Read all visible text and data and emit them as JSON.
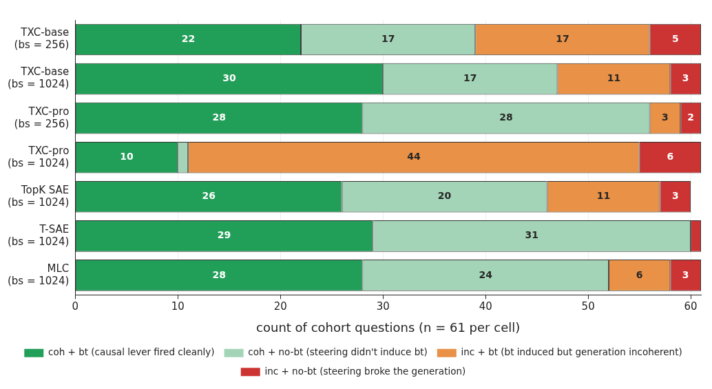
{
  "chart_data": {
    "type": "bar",
    "orientation": "horizontal",
    "stacked": true,
    "xlabel": "count of cohort questions (n = 61 per cell)",
    "categories": [
      "TXC-base\n(bs = 256)",
      "TXC-base\n(bs = 1024)",
      "TXC-pro\n(bs = 256)",
      "TXC-pro\n(bs = 1024)",
      "TopK SAE\n(bs = 1024)",
      "T-SAE\n(bs = 1024)",
      "MLC\n(bs = 1024)"
    ],
    "series": [
      {
        "name": "coh + bt (causal lever fired cleanly)",
        "color": "#219e58",
        "values": [
          22,
          30,
          28,
          10,
          26,
          29,
          28
        ],
        "value_labels": [
          "22",
          "30",
          "28",
          "10",
          "26",
          "29",
          "28"
        ]
      },
      {
        "name": "coh + no-bt (steering didn't induce bt)",
        "color": "#a4d4b7",
        "values": [
          17,
          17,
          28,
          1,
          20,
          31,
          24
        ],
        "value_labels": [
          "17",
          "17",
          "28",
          null,
          "20",
          "31",
          "24"
        ]
      },
      {
        "name": "inc + bt (bt induced but generation incoherent)",
        "color": "#e89147",
        "values": [
          17,
          11,
          3,
          44,
          11,
          0,
          6
        ],
        "value_labels": [
          "17",
          "11",
          "3",
          "44",
          "11",
          null,
          "6"
        ]
      },
      {
        "name": "inc + no-bt (steering broke the generation)",
        "color": "#cc3333",
        "values": [
          5,
          3,
          2,
          6,
          3,
          1,
          3
        ],
        "value_labels": [
          "5",
          "3",
          "2",
          "6",
          "3",
          null,
          "3"
        ]
      }
    ],
    "xlim": [
      0,
      61
    ],
    "xticks": [
      0,
      10,
      20,
      30,
      40,
      50,
      60
    ],
    "grid": "x",
    "legend": "bottom"
  }
}
